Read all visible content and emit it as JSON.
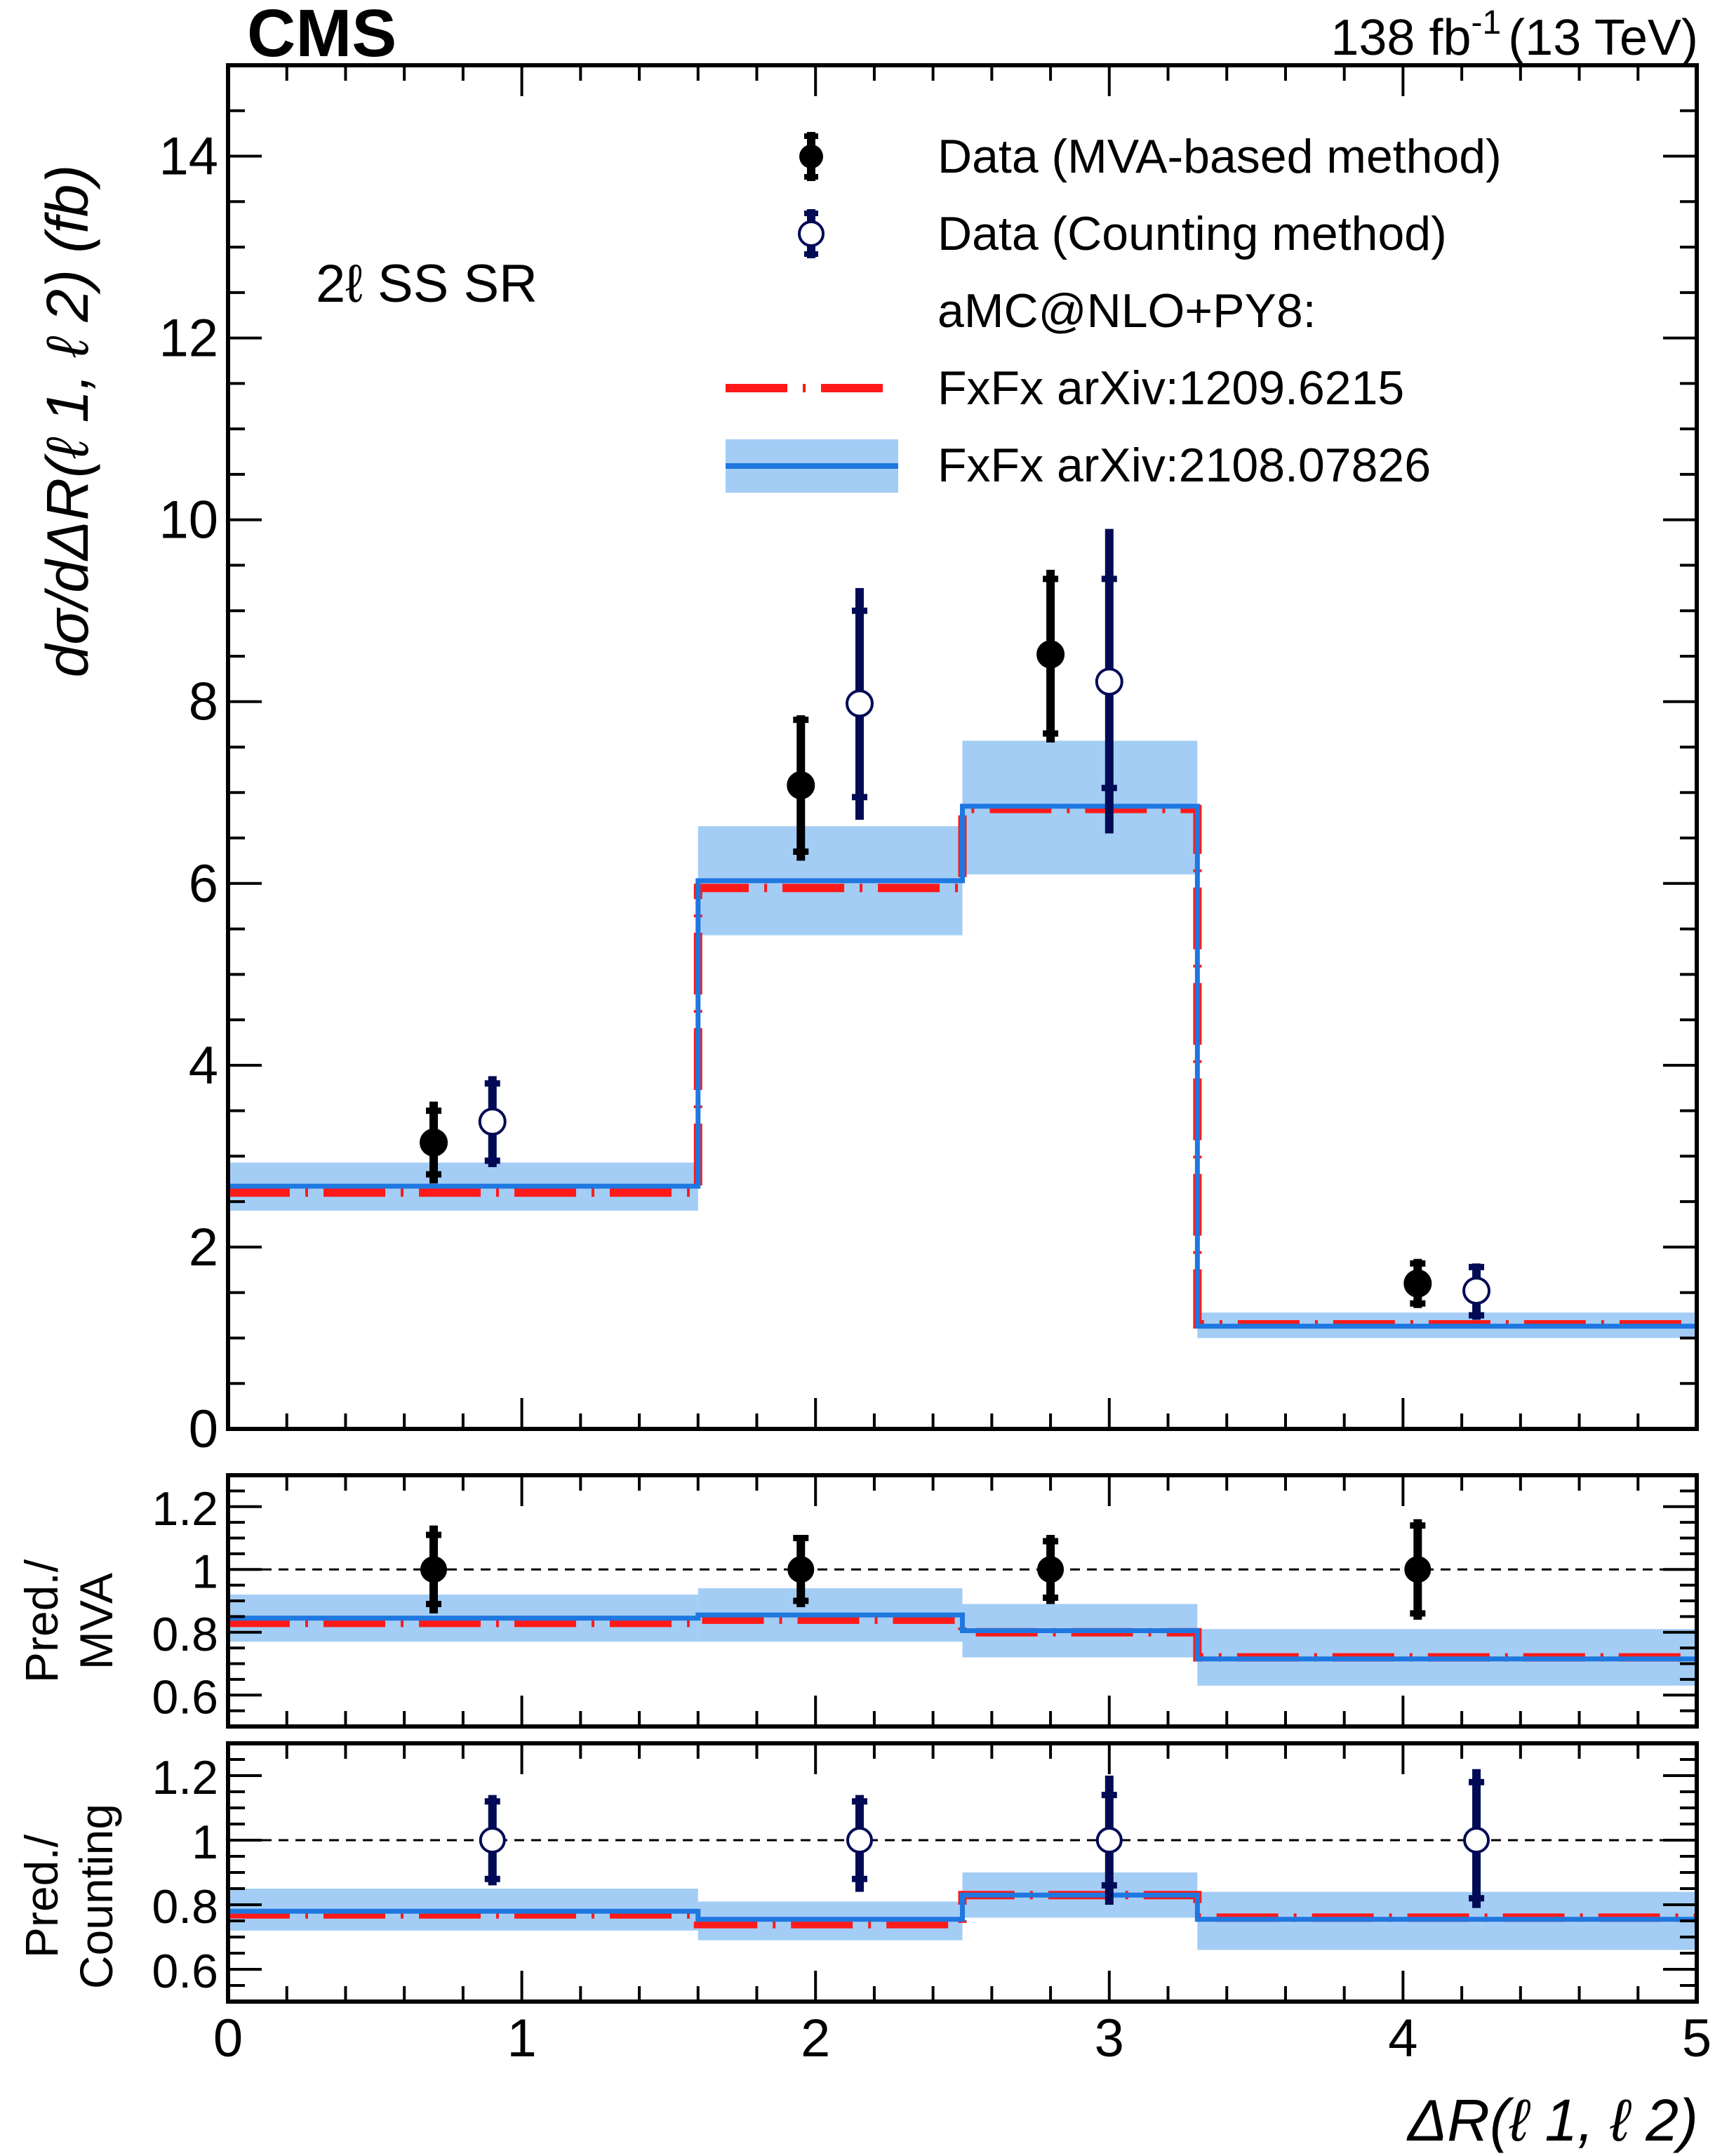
{
  "chart_data": {
    "type": "step-hist-with-ratio",
    "experiment_label": "CMS",
    "luminosity_label": "138 fb",
    "luminosity_exponent": "-1",
    "energy_label": "(13 TeV)",
    "region_label": "2ℓ SS SR",
    "ylabel": "dσ/dΔR(ℓ 1, ℓ 2) (fb)",
    "xlabel": "ΔR(ℓ 1, ℓ 2)",
    "bins": [
      0,
      1.6,
      2.5,
      3.3,
      5.0
    ],
    "xlim": [
      0,
      5
    ],
    "xticks": [
      "0",
      "1",
      "2",
      "3",
      "4",
      "5"
    ],
    "main": {
      "ylim": [
        0,
        15
      ],
      "yticks": [
        "0",
        "2",
        "4",
        "6",
        "8",
        "10",
        "12",
        "14"
      ],
      "data_mva": [
        {
          "x": 0.7,
          "y": 3.15,
          "stat_lo": 2.8,
          "stat_hi": 3.5,
          "tot_lo": 2.7,
          "tot_hi": 3.6
        },
        {
          "x": 1.95,
          "y": 7.08,
          "stat_lo": 6.35,
          "stat_hi": 7.8,
          "tot_lo": 6.25,
          "tot_hi": 7.85
        },
        {
          "x": 2.8,
          "y": 8.52,
          "stat_lo": 7.65,
          "stat_hi": 9.35,
          "tot_lo": 7.55,
          "tot_hi": 9.45
        },
        {
          "x": 4.05,
          "y": 1.6,
          "stat_lo": 1.38,
          "stat_hi": 1.82,
          "tot_lo": 1.33,
          "tot_hi": 1.87
        }
      ],
      "data_counting": [
        {
          "x": 0.9,
          "y": 3.38,
          "stat_lo": 2.95,
          "stat_hi": 3.8,
          "tot_lo": 2.88,
          "tot_hi": 3.88
        },
        {
          "x": 2.15,
          "y": 7.98,
          "stat_lo": 6.95,
          "stat_hi": 9.0,
          "tot_lo": 6.7,
          "tot_hi": 9.25
        },
        {
          "x": 3.0,
          "y": 8.22,
          "stat_lo": 7.05,
          "stat_hi": 9.35,
          "tot_lo": 6.55,
          "tot_hi": 9.9
        },
        {
          "x": 4.25,
          "y": 1.52,
          "stat_lo": 1.25,
          "stat_hi": 1.78,
          "tot_lo": 1.2,
          "tot_hi": 1.82
        }
      ],
      "pred_old": [
        2.6,
        5.95,
        6.82,
        1.15
      ],
      "pred_new": [
        2.67,
        6.03,
        6.85,
        1.13
      ],
      "pred_new_band_lo": [
        2.4,
        5.43,
        6.1,
        1.0
      ],
      "pred_new_band_hi": [
        2.93,
        6.63,
        7.57,
        1.28
      ]
    },
    "ratio_mva": {
      "ylabel_line1": "Pred./",
      "ylabel_line2": "MVA",
      "ylim": [
        0.5,
        1.3
      ],
      "yticks": [
        "0.6",
        "0.8",
        "1",
        "1.2"
      ],
      "points": [
        {
          "x": 0.7,
          "y": 1.0,
          "stat_lo": 0.89,
          "stat_hi": 1.11,
          "tot_lo": 0.86,
          "tot_hi": 1.14
        },
        {
          "x": 1.95,
          "y": 1.0,
          "stat_lo": 0.9,
          "stat_hi": 1.1,
          "tot_lo": 0.88,
          "tot_hi": 1.11
        },
        {
          "x": 2.8,
          "y": 1.0,
          "stat_lo": 0.91,
          "stat_hi": 1.09,
          "tot_lo": 0.89,
          "tot_hi": 1.11
        },
        {
          "x": 4.05,
          "y": 1.0,
          "stat_lo": 0.86,
          "stat_hi": 1.14,
          "tot_lo": 0.84,
          "tot_hi": 1.16
        }
      ],
      "pred_old": [
        0.83,
        0.84,
        0.8,
        0.72
      ],
      "pred_new": [
        0.845,
        0.855,
        0.805,
        0.715
      ],
      "band_lo": [
        0.77,
        0.77,
        0.72,
        0.63
      ],
      "band_hi": [
        0.92,
        0.94,
        0.89,
        0.81
      ]
    },
    "ratio_counting": {
      "ylabel_line1": "Pred./",
      "ylabel_line2": "Counting",
      "ylim": [
        0.5,
        1.3
      ],
      "yticks": [
        "0.6",
        "0.8",
        "1",
        "1.2"
      ],
      "points": [
        {
          "x": 0.9,
          "y": 1.0,
          "stat_lo": 0.88,
          "stat_hi": 1.12,
          "tot_lo": 0.86,
          "tot_hi": 1.14
        },
        {
          "x": 2.15,
          "y": 1.0,
          "stat_lo": 0.88,
          "stat_hi": 1.12,
          "tot_lo": 0.84,
          "tot_hi": 1.14
        },
        {
          "x": 3.0,
          "y": 1.0,
          "stat_lo": 0.86,
          "stat_hi": 1.14,
          "tot_lo": 0.8,
          "tot_hi": 1.2
        },
        {
          "x": 4.25,
          "y": 1.0,
          "stat_lo": 0.82,
          "stat_hi": 1.18,
          "tot_lo": 0.79,
          "tot_hi": 1.22
        }
      ],
      "pred_old": [
        0.77,
        0.74,
        0.83,
        0.76
      ],
      "pred_new": [
        0.78,
        0.755,
        0.83,
        0.755
      ],
      "band_lo": [
        0.72,
        0.69,
        0.76,
        0.66
      ],
      "band_hi": [
        0.85,
        0.81,
        0.9,
        0.84
      ]
    },
    "legend": {
      "mva": "Data (MVA-based method)",
      "counting": "Data (Counting method)",
      "generator": "aMC@NLO+PY8:",
      "old": "FxFx arXiv:1209.6215",
      "new": "FxFx arXiv:2108.07826"
    },
    "colors": {
      "mva": "#000000",
      "counting": "#000a55",
      "old": "#ff1a1a",
      "new": "#1f77e0",
      "band": "#a3cdf5"
    }
  }
}
